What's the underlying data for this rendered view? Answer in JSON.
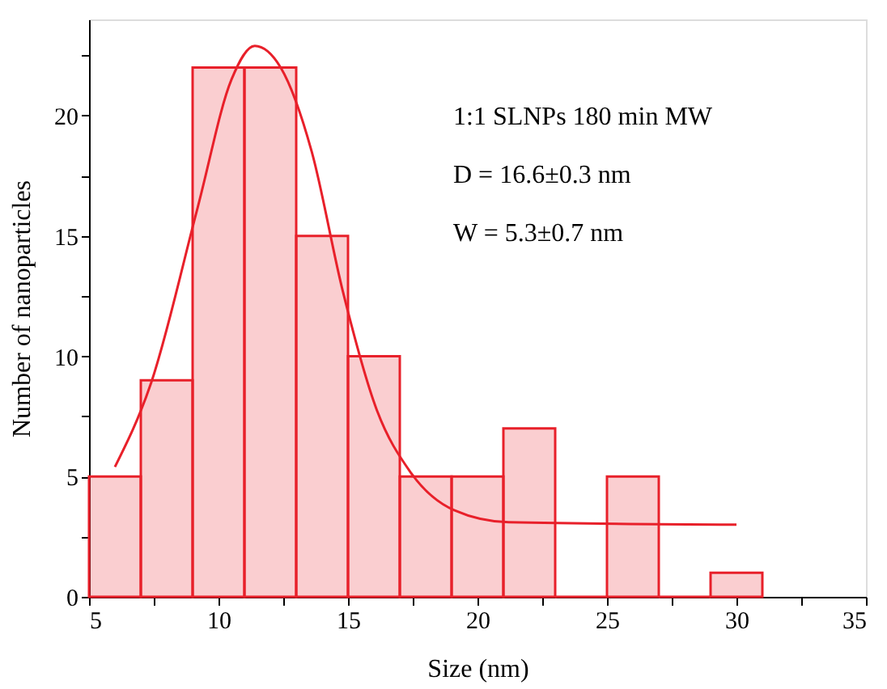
{
  "chart_data": {
    "type": "histogram",
    "color": "#e8202a",
    "xlabel": "Size (nm)",
    "ylabel": "Number of nanoparticles",
    "bins": [
      5,
      7,
      9,
      11,
      13,
      15,
      17,
      19,
      21,
      23,
      25,
      27,
      29,
      31
    ],
    "values": [
      5,
      9,
      22,
      22,
      15,
      10,
      5,
      5,
      7,
      0,
      5,
      0,
      1
    ],
    "xlim": [
      5,
      35
    ],
    "ylim": [
      0,
      24
    ],
    "xticks": [
      5,
      {
        "value": 7.5,
        "label": null
      },
      10,
      {
        "value": 12.5,
        "label": null
      },
      15,
      {
        "value": 17.5,
        "label": null
      },
      20,
      {
        "value": 22.5,
        "label": null
      },
      25,
      {
        "value": 27.5,
        "label": null
      },
      30,
      {
        "value": 32.5,
        "label": null
      },
      35
    ],
    "yticks": [
      0,
      {
        "value": 2.5,
        "label": null
      },
      5,
      {
        "value": 7.5,
        "label": null
      },
      10,
      {
        "value": 12.5,
        "label": null
      },
      15,
      {
        "value": 17.5,
        "label": null
      },
      20,
      {
        "value": 22.5,
        "label": null
      }
    ],
    "series": [
      {
        "type": "line",
        "color": "#e8202a",
        "x": [
          6.0,
          7.4,
          9.2,
          10.5,
          11.4,
          12.4,
          13.6,
          14.8,
          16.1,
          17.4,
          19.1,
          21.2,
          30.0
        ],
        "values": [
          5.4,
          8.9,
          16.2,
          21.5,
          22.9,
          22.0,
          18.5,
          12.7,
          7.8,
          5.2,
          3.6,
          3.1,
          3.0
        ]
      }
    ],
    "annotations": [
      "1:1 SLNPs 180 min MW",
      "D = 16.6±0.3 nm",
      "W = 5.3±0.7 nm"
    ]
  }
}
